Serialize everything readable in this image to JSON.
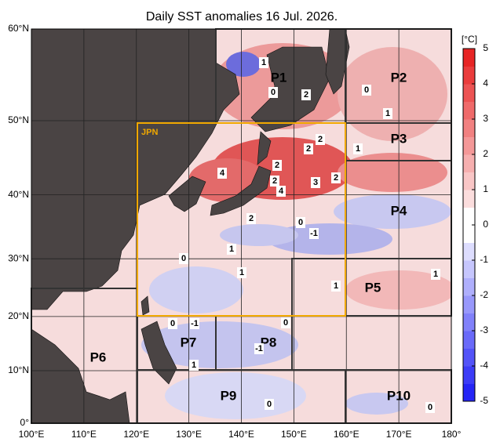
{
  "title": "Daily SST anomalies 16 Jul. 2026.",
  "lon_ticks": [
    {
      "value": 100,
      "label": "100°E"
    },
    {
      "value": 110,
      "label": "110°E"
    },
    {
      "value": 120,
      "label": "120°E"
    },
    {
      "value": 130,
      "label": "130°E"
    },
    {
      "value": 140,
      "label": "140°E"
    },
    {
      "value": 150,
      "label": "150°E"
    },
    {
      "value": 160,
      "label": "160°E"
    },
    {
      "value": 170,
      "label": "170°E"
    },
    {
      "value": 180,
      "label": "180°"
    }
  ],
  "lat_ticks": [
    {
      "value": 0,
      "label": "0°"
    },
    {
      "value": 10,
      "label": "10°N"
    },
    {
      "value": 20,
      "label": "20°N"
    },
    {
      "value": 30,
      "label": "30°N"
    },
    {
      "value": 40,
      "label": "40°N"
    },
    {
      "value": 50,
      "label": "50°N"
    },
    {
      "value": 60,
      "label": "60°N"
    }
  ],
  "colorbar": {
    "unit": "[°C]",
    "range": [
      -5,
      5
    ],
    "ticks": [
      5,
      4,
      3,
      2,
      1,
      0,
      -1,
      -2,
      -3,
      -4,
      -5
    ]
  },
  "area_label": "JPN",
  "regions": [
    "P1",
    "P2",
    "P3",
    "P4",
    "P5",
    "P6",
    "P7",
    "P8",
    "P9",
    "P10"
  ],
  "contour_labels": [
    1,
    0,
    2,
    0,
    1,
    1,
    2,
    2,
    4,
    2,
    2,
    3,
    2,
    4,
    2,
    0,
    -1,
    1,
    0,
    1,
    1,
    0,
    -1,
    0,
    -1,
    1,
    1,
    0,
    0
  ]
}
